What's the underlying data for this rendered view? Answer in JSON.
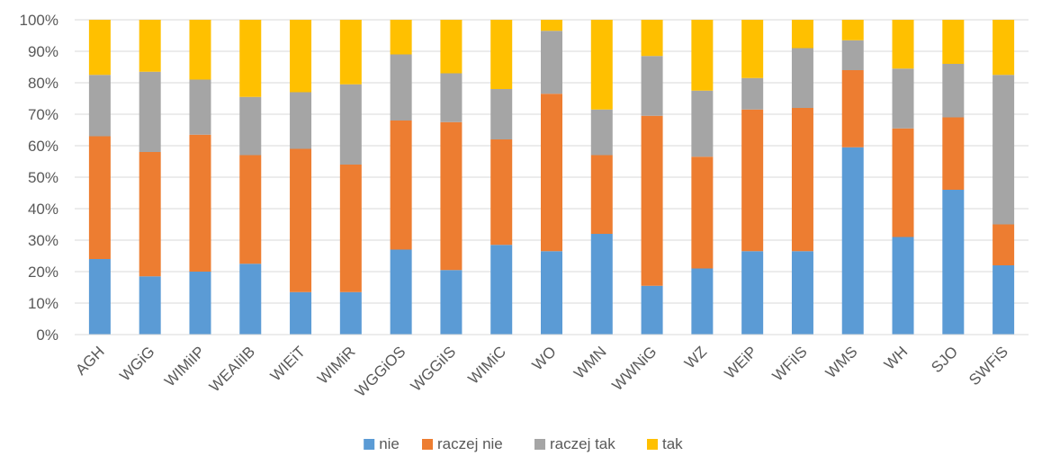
{
  "chart_data": {
    "type": "bar",
    "stacked": "percent",
    "categories": [
      "AGH",
      "WGiG",
      "WIMiIP",
      "WEAIiIB",
      "WIEiT",
      "WIMiR",
      "WGGiOS",
      "WGGiIS",
      "WIMiC",
      "WO",
      "WMN",
      "WWNiG",
      "WZ",
      "WEiP",
      "WFiIS",
      "WMS",
      "WH",
      "SJO",
      "SWFiS"
    ],
    "series": [
      {
        "name": "nie",
        "color": "#5B9BD5",
        "values": [
          24,
          18.5,
          20,
          22.5,
          13.5,
          13.5,
          27,
          20.5,
          28.5,
          26.5,
          32,
          15.5,
          21,
          26.5,
          26.5,
          59.5,
          31,
          46,
          22
        ]
      },
      {
        "name": "raczej nie",
        "color": "#ED7D31",
        "values": [
          39,
          39.5,
          43.5,
          34.5,
          45.5,
          40.5,
          41,
          47,
          33.5,
          50,
          25,
          54,
          35.5,
          45,
          45.5,
          24.5,
          34.5,
          23,
          13
        ]
      },
      {
        "name": "raczej tak",
        "color": "#A5A5A5",
        "values": [
          19.5,
          25.5,
          17.5,
          18.5,
          18,
          25.5,
          21,
          15.5,
          16,
          20,
          14.5,
          19,
          21,
          10,
          19,
          9.5,
          19,
          17,
          47.5
        ]
      },
      {
        "name": "tak",
        "color": "#FFC000",
        "values": [
          17.5,
          16.5,
          19,
          24.5,
          23,
          20.5,
          11,
          17,
          22,
          3.5,
          28.5,
          11.5,
          22.5,
          18.5,
          9,
          6.5,
          15.5,
          14,
          17.5
        ]
      }
    ],
    "y_ticks": [
      "0%",
      "10%",
      "20%",
      "30%",
      "40%",
      "50%",
      "60%",
      "70%",
      "80%",
      "90%",
      "100%"
    ],
    "ylim": [
      0,
      100
    ],
    "grid": true,
    "legend": "bottom"
  }
}
